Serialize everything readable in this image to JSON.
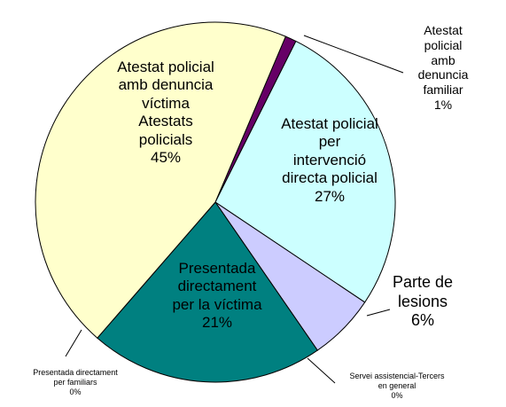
{
  "chart_data": {
    "type": "pie",
    "categories": [
      "Atestat policial\namb denuncia\nfamiliar",
      "Atestat policial\nper\nintervenció\ndirecta policial",
      "Parte de\nlesions",
      "Servei assistencial-Tercers\nen general",
      "Presentada\ndirectament\nper la víctima",
      "Presentada directament\nper familiars",
      "Atestat policial\namb denuncia\nvíctima\nAtestats\npolicials"
    ],
    "values": [
      1,
      27,
      6,
      0,
      21,
      0,
      45
    ],
    "value_labels": [
      "1%",
      "27%",
      "6%",
      "0%",
      "21%",
      "0%",
      "45%"
    ],
    "colors": [
      "#660066",
      "#ccffff",
      "#ccccff",
      "#0066cc",
      "#008080",
      "#336699",
      "#ffffcc"
    ]
  }
}
